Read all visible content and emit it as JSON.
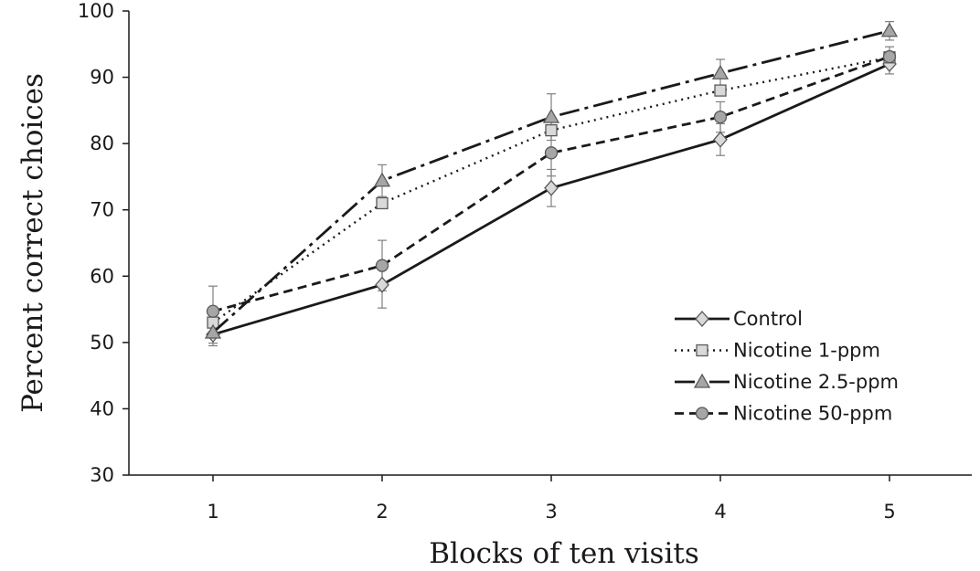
{
  "chart_data": {
    "type": "line",
    "title": "",
    "xlabel": "Blocks of ten visits",
    "ylabel": "Percent correct choices",
    "x": [
      1,
      2,
      3,
      4,
      5
    ],
    "x_tick_labels": [
      "1",
      "2",
      "3",
      "4",
      "5"
    ],
    "ylim": [
      30,
      100
    ],
    "y_ticks": [
      30,
      40,
      50,
      60,
      70,
      80,
      90,
      100
    ],
    "y_tick_labels": [
      "30",
      "40",
      "50",
      "60",
      "70",
      "80",
      "90",
      "100"
    ],
    "grid": false,
    "legend_position": "bottom-right",
    "series": [
      {
        "name": "Control",
        "marker": "diamond",
        "line_style": "solid",
        "color": "#1a1a1a",
        "marker_fill": "#d9d9d9",
        "values": [
          51.2,
          58.7,
          73.3,
          80.6,
          92.0
        ],
        "errors": [
          1.7,
          3.5,
          2.8,
          2.4,
          1.5
        ]
      },
      {
        "name": "Nicotine 1-ppm",
        "marker": "square",
        "line_style": "dotted",
        "color": "#1a1a1a",
        "marker_fill": "#d9d9d9",
        "values": [
          53.0,
          71.0,
          82.0,
          88.0,
          93.0
        ],
        "errors": [
          0,
          0,
          0,
          0,
          0
        ]
      },
      {
        "name": "Nicotine 2.5-ppm",
        "marker": "triangle",
        "line_style": "dashdot",
        "color": "#1a1a1a",
        "marker_fill": "#a6a6a6",
        "values": [
          51.5,
          74.4,
          84.0,
          90.6,
          97.0
        ],
        "errors": [
          1.6,
          2.4,
          3.5,
          2.1,
          1.4
        ]
      },
      {
        "name": "Nicotine 50-ppm",
        "marker": "circle",
        "line_style": "dashed",
        "color": "#1a1a1a",
        "marker_fill": "#a6a6a6",
        "values": [
          54.7,
          61.6,
          78.6,
          84.0,
          93.1
        ],
        "errors": [
          3.8,
          3.8,
          3.5,
          2.3,
          1.5
        ]
      }
    ]
  }
}
